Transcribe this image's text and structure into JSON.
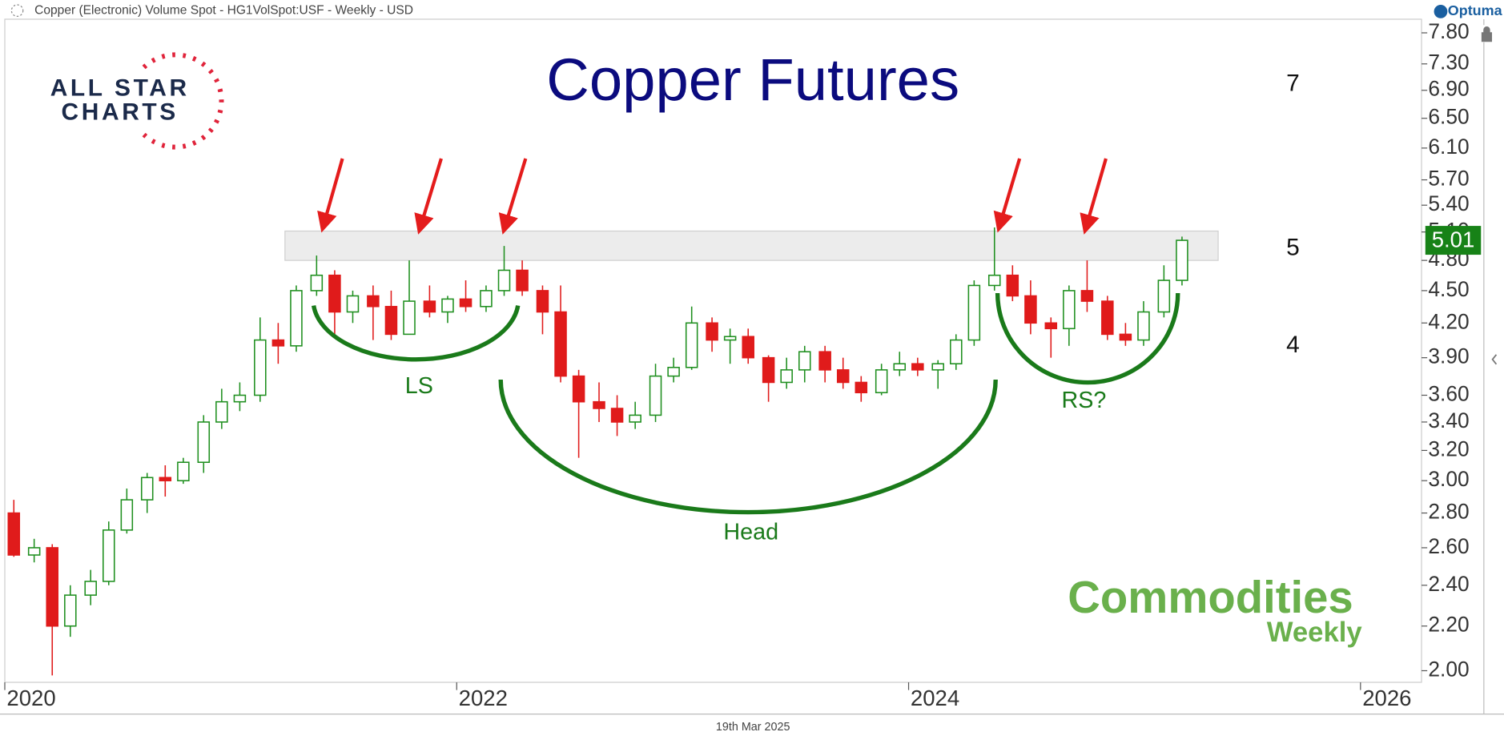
{
  "page": {
    "header": "Copper (Electronic) Volume Spot - HG1VolSpot:USF - Weekly - USD",
    "brand": "Optuma",
    "date_label": "19th Mar 2025",
    "logo_allstar": [
      "ALL STAR",
      "CHARTS"
    ],
    "logo_commodities": [
      "Commodities",
      "Weekly"
    ]
  },
  "chart_data": {
    "type": "candlestick",
    "title": "Copper Futures",
    "x": [
      2020.04,
      2020.13,
      2020.21,
      2020.29,
      2020.38,
      2020.46,
      2020.54,
      2020.63,
      2020.71,
      2020.79,
      2020.88,
      2020.96,
      2021.04,
      2021.13,
      2021.21,
      2021.29,
      2021.38,
      2021.46,
      2021.54,
      2021.63,
      2021.71,
      2021.79,
      2021.88,
      2021.96,
      2022.04,
      2022.13,
      2022.21,
      2022.29,
      2022.38,
      2022.46,
      2022.54,
      2022.63,
      2022.71,
      2022.79,
      2022.88,
      2022.96,
      2023.04,
      2023.13,
      2023.21,
      2023.29,
      2023.38,
      2023.46,
      2023.54,
      2023.63,
      2023.71,
      2023.79,
      2023.88,
      2023.96,
      2024.04,
      2024.13,
      2024.21,
      2024.29,
      2024.38,
      2024.46,
      2024.54,
      2024.63,
      2024.71,
      2024.79,
      2024.88,
      2024.96,
      2025.04,
      2025.13,
      2025.21
    ],
    "open": [
      2.8,
      2.56,
      2.6,
      2.2,
      2.35,
      2.42,
      2.7,
      2.88,
      3.02,
      3.0,
      3.12,
      3.4,
      3.55,
      3.6,
      4.05,
      4.0,
      4.5,
      4.65,
      4.3,
      4.45,
      4.35,
      4.1,
      4.4,
      4.3,
      4.42,
      4.35,
      4.5,
      4.7,
      4.5,
      4.3,
      3.75,
      3.55,
      3.5,
      3.4,
      3.45,
      3.75,
      3.82,
      4.2,
      4.05,
      4.08,
      3.9,
      3.7,
      3.8,
      3.95,
      3.8,
      3.7,
      3.62,
      3.8,
      3.85,
      3.8,
      3.85,
      4.05,
      4.55,
      4.65,
      4.45,
      4.2,
      4.15,
      4.5,
      4.4,
      4.1,
      4.05,
      4.3,
      4.6
    ],
    "high": [
      2.88,
      2.65,
      2.62,
      2.4,
      2.48,
      2.75,
      2.95,
      3.05,
      3.1,
      3.15,
      3.45,
      3.65,
      3.7,
      4.25,
      4.2,
      4.55,
      4.85,
      4.7,
      4.5,
      4.55,
      4.5,
      4.8,
      4.55,
      4.45,
      4.6,
      4.55,
      4.95,
      4.8,
      4.55,
      4.55,
      3.8,
      3.7,
      3.6,
      3.55,
      3.85,
      3.9,
      4.35,
      4.25,
      4.15,
      4.15,
      3.92,
      3.9,
      4.0,
      4.0,
      3.9,
      3.75,
      3.85,
      3.95,
      3.9,
      3.88,
      4.1,
      4.6,
      5.15,
      4.75,
      4.6,
      4.25,
      4.55,
      4.8,
      4.45,
      4.2,
      4.4,
      4.75,
      5.05
    ],
    "low": [
      2.55,
      2.52,
      1.98,
      2.15,
      2.3,
      2.4,
      2.68,
      2.8,
      2.9,
      2.98,
      3.05,
      3.35,
      3.48,
      3.55,
      3.85,
      3.95,
      4.45,
      4.1,
      4.2,
      4.05,
      4.05,
      4.1,
      4.25,
      4.2,
      4.3,
      4.3,
      4.45,
      4.45,
      4.1,
      3.7,
      3.15,
      3.4,
      3.3,
      3.35,
      3.4,
      3.7,
      3.8,
      3.95,
      3.85,
      3.85,
      3.55,
      3.65,
      3.7,
      3.7,
      3.65,
      3.55,
      3.6,
      3.75,
      3.75,
      3.65,
      3.8,
      4.0,
      4.5,
      4.4,
      4.1,
      3.9,
      4.0,
      4.3,
      4.05,
      4.0,
      4.0,
      4.25,
      4.55
    ],
    "close": [
      2.56,
      2.6,
      2.2,
      2.35,
      2.42,
      2.7,
      2.88,
      3.02,
      3.0,
      3.12,
      3.4,
      3.55,
      3.6,
      4.05,
      4.0,
      4.5,
      4.65,
      4.3,
      4.45,
      4.35,
      4.1,
      4.4,
      4.3,
      4.42,
      4.35,
      4.5,
      4.7,
      4.5,
      4.3,
      3.75,
      3.55,
      3.5,
      3.4,
      3.45,
      3.75,
      3.82,
      4.2,
      4.05,
      4.08,
      3.9,
      3.7,
      3.8,
      3.95,
      3.8,
      3.7,
      3.62,
      3.8,
      3.85,
      3.8,
      3.85,
      4.05,
      4.55,
      4.65,
      4.45,
      4.2,
      4.15,
      4.5,
      4.4,
      4.1,
      4.05,
      4.3,
      4.6,
      5.01
    ],
    "up_color": "#1f8f1f",
    "down_color": "#e01b1b",
    "log_scale": true,
    "grid": false,
    "xlim": [
      2020,
      2026.27
    ],
    "xticks": [
      2020,
      2022,
      2024,
      2026
    ],
    "ylim": [
      1.951,
      8.03
    ],
    "yticks": [
      {
        "value": 2.0,
        "label": "2.00"
      },
      {
        "value": 2.2,
        "label": "2.20"
      },
      {
        "value": 2.4,
        "label": "2.40"
      },
      {
        "value": 2.6,
        "label": "2.60"
      },
      {
        "value": 2.8,
        "label": "2.80"
      },
      {
        "value": 3.0,
        "label": "3.00"
      },
      {
        "value": 3.2,
        "label": "3.20"
      },
      {
        "value": 3.4,
        "label": "3.40"
      },
      {
        "value": 3.6,
        "label": "3.60"
      },
      {
        "value": 3.9,
        "label": "3.90"
      },
      {
        "value": 4.2,
        "label": "4.20"
      },
      {
        "value": 4.5,
        "label": "4.50"
      },
      {
        "value": 4.8,
        "label": "4.80"
      },
      {
        "value": 5.1,
        "label": "5.10"
      },
      {
        "value": 5.4,
        "label": "5.40"
      },
      {
        "value": 5.7,
        "label": "5.70"
      },
      {
        "value": 6.1,
        "label": "6.10"
      },
      {
        "value": 6.5,
        "label": "6.50"
      },
      {
        "value": 6.9,
        "label": "6.90"
      },
      {
        "value": 7.3,
        "label": "7.30"
      },
      {
        "value": 7.8,
        "label": "7.80"
      }
    ],
    "last_price": {
      "value": 5.01,
      "label": "5.01"
    },
    "resistance_zone": {
      "x": [
        2021.24,
        2025.37
      ],
      "y": [
        4.8,
        5.11
      ]
    },
    "pattern_labels": [
      "LS",
      "Head",
      "RS?"
    ],
    "level_labels": [
      "7",
      "5",
      "4"
    ]
  }
}
